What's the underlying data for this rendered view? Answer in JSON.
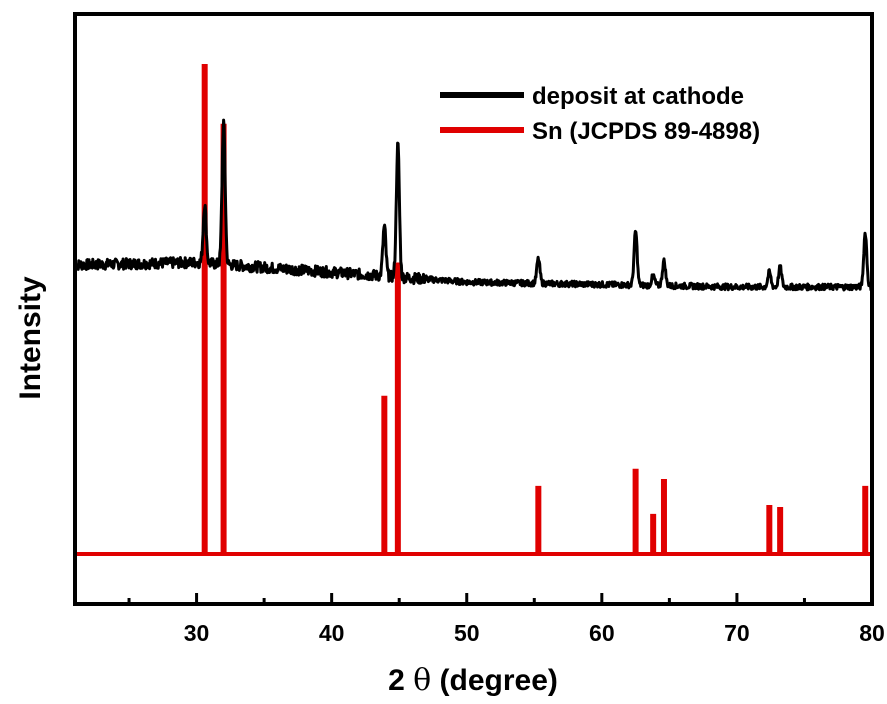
{
  "chart_data": {
    "type": "line",
    "xlabel_prefix": "2",
    "xlabel_symbol": "θ",
    "xlabel_suffix": "(degree)",
    "ylabel": "Intensity",
    "xlim": [
      21,
      80
    ],
    "x_ticks": [
      30,
      40,
      50,
      60,
      70,
      80
    ],
    "x_tick_labels": [
      "30",
      "40",
      "50",
      "60",
      "70",
      "80"
    ],
    "y_ticks_shown": false,
    "grid": false,
    "legend_position": "top-right",
    "series": [
      {
        "name": "deposit at cathode",
        "color": "#000000",
        "kind": "xrd-pattern",
        "baseline": {
          "x": [
            21,
            30,
            40,
            50,
            60,
            70,
            80
          ],
          "y": [
            0.59,
            0.595,
            0.575,
            0.555,
            0.55,
            0.545,
            0.545
          ]
        },
        "peaks": [
          {
            "x": 30.6,
            "height": 0.12
          },
          {
            "x": 32.0,
            "height": 0.29
          },
          {
            "x": 43.9,
            "height": 0.1
          },
          {
            "x": 44.9,
            "height": 0.27
          },
          {
            "x": 55.3,
            "height": 0.05
          },
          {
            "x": 62.5,
            "height": 0.11
          },
          {
            "x": 63.8,
            "height": 0.02
          },
          {
            "x": 64.6,
            "height": 0.05
          },
          {
            "x": 72.4,
            "height": 0.03
          },
          {
            "x": 73.2,
            "height": 0.04
          },
          {
            "x": 79.5,
            "height": 0.11
          }
        ]
      },
      {
        "name": "Sn (JCPDS 89-4898)",
        "color": "#e00000",
        "kind": "reference-lines",
        "baseline_y": 0.0,
        "lines": [
          {
            "x": 30.6,
            "y": 1.0
          },
          {
            "x": 32.0,
            "y": 0.878
          },
          {
            "x": 43.9,
            "y": 0.323
          },
          {
            "x": 44.9,
            "y": 0.595
          },
          {
            "x": 55.3,
            "y": 0.139
          },
          {
            "x": 62.5,
            "y": 0.174
          },
          {
            "x": 63.8,
            "y": 0.082
          },
          {
            "x": 64.6,
            "y": 0.153
          },
          {
            "x": 72.4,
            "y": 0.1
          },
          {
            "x": 73.2,
            "y": 0.096
          },
          {
            "x": 79.5,
            "y": 0.139
          }
        ]
      }
    ]
  }
}
